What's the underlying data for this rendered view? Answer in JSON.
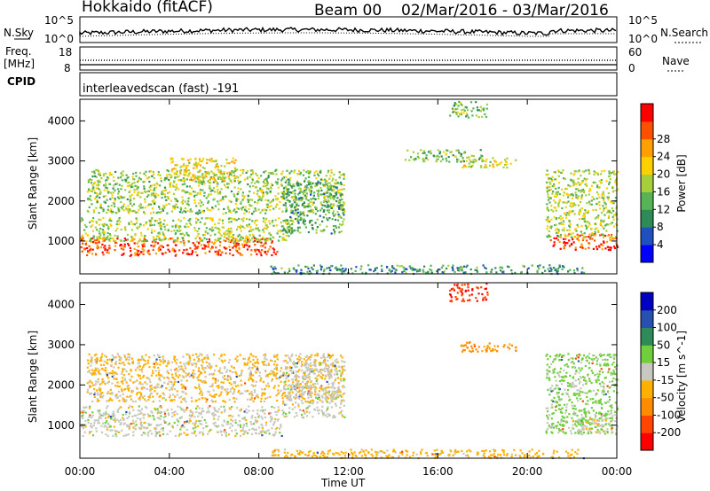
{
  "header": {
    "radar": "Hokkaido (fitACF)",
    "beam": "Beam 00",
    "dates": "02/Mar/2016 - 03/Mar/2016"
  },
  "left_labels": {
    "nsky": "N.Sky",
    "freq": "Freq.",
    "freq_unit": "[MHz]",
    "cpid": "CPID"
  },
  "right_labels": {
    "nsearch": "N.Search",
    "nave": "Nave"
  },
  "noise_panel": {
    "left_ticks": [
      "10^5",
      "10^0"
    ],
    "right_ticks": [
      "10^5",
      "10^0"
    ]
  },
  "freq_panel": {
    "left_ticks": [
      "18",
      "8"
    ],
    "right_ticks": [
      "60",
      "0"
    ]
  },
  "cpid_text": "interleavedscan (fast) -191",
  "x_axis": {
    "ticks": [
      "00:00",
      "04:00",
      "08:00",
      "12:00",
      "16:00",
      "20:00",
      "00:00"
    ],
    "title": "Time UT"
  },
  "chart_data": [
    {
      "type": "heatmap",
      "ylabel": "Slant Range [km]",
      "xlabel": "Time UT",
      "x_ticks_hours": [
        0,
        4,
        8,
        12,
        16,
        20,
        24
      ],
      "y_ticks": [
        1000,
        2000,
        3000,
        4000
      ],
      "ylim": [
        180,
        4540
      ],
      "xlim_hours": [
        0,
        24
      ],
      "colorbar": {
        "title": "Power [dB]",
        "ticks": [
          "4",
          "8",
          "12",
          "16",
          "20",
          "24",
          "28"
        ],
        "colors": [
          "#0000ff",
          "#2050c0",
          "#2e8b57",
          "#56b356",
          "#a7cf3c",
          "#ffd000",
          "#ffa000",
          "#ff5000",
          "#ff0000"
        ]
      },
      "regions": [
        {
          "t0": 0.0,
          "t1": 8.8,
          "r0": 650,
          "r1": 1100,
          "v": 26
        },
        {
          "t0": 0.0,
          "t1": 9.5,
          "r0": 1000,
          "r1": 1600,
          "v": 15
        },
        {
          "t0": 0.3,
          "t1": 11.8,
          "r0": 1700,
          "r1": 2800,
          "v": 14
        },
        {
          "t0": 9.0,
          "t1": 11.8,
          "r0": 1200,
          "r1": 2500,
          "v": 11
        },
        {
          "t0": 4.0,
          "t1": 7.0,
          "r0": 2500,
          "r1": 3100,
          "v": 18
        },
        {
          "t0": 16.5,
          "t1": 18.2,
          "r0": 4100,
          "r1": 4500,
          "v": 13
        },
        {
          "t0": 17.0,
          "t1": 19.5,
          "r0": 2850,
          "r1": 3100,
          "v": 17
        },
        {
          "t0": 14.5,
          "t1": 18.0,
          "r0": 3000,
          "r1": 3300,
          "v": 12
        },
        {
          "t0": 21.0,
          "t1": 24.0,
          "r0": 800,
          "r1": 1200,
          "v": 26
        },
        {
          "t0": 20.8,
          "t1": 24.0,
          "r0": 1100,
          "r1": 2800,
          "v": 15
        },
        {
          "t0": 8.5,
          "t1": 22.5,
          "r0": 200,
          "r1": 420,
          "v": 9
        }
      ]
    },
    {
      "type": "heatmap",
      "ylabel": "Slant Range [km]",
      "xlabel": "Time UT",
      "x_ticks_hours": [
        0,
        4,
        8,
        12,
        16,
        20,
        24
      ],
      "y_ticks": [
        1000,
        2000,
        3000,
        4000
      ],
      "ylim": [
        180,
        4540
      ],
      "xlim_hours": [
        0,
        24
      ],
      "colorbar": {
        "title": "Velocity [m s^-1]",
        "ticks": [
          "-200",
          "-100",
          "-50",
          "-15",
          "15",
          "50",
          "100",
          "200"
        ],
        "colors": [
          "#ff0000",
          "#ff4500",
          "#ff8c00",
          "#ffb000",
          "#c8c8c0",
          "#6fcf3a",
          "#2e8b57",
          "#2850b0",
          "#0000c0"
        ]
      },
      "regions": [
        {
          "t0": 0.0,
          "t1": 9.0,
          "r0": 750,
          "r1": 1500,
          "v": 0
        },
        {
          "t0": 0.3,
          "t1": 11.8,
          "r0": 1600,
          "r1": 2800,
          "v": -20
        },
        {
          "t0": 9.0,
          "t1": 11.8,
          "r0": 1200,
          "r1": 2600,
          "v": 0
        },
        {
          "t0": 16.5,
          "t1": 18.2,
          "r0": 4100,
          "r1": 4540,
          "v": -200
        },
        {
          "t0": 17.0,
          "t1": 19.5,
          "r0": 2850,
          "r1": 3100,
          "v": -60
        },
        {
          "t0": 20.8,
          "t1": 24.0,
          "r0": 800,
          "r1": 2800,
          "v": 25
        },
        {
          "t0": 22.0,
          "t1": 24.0,
          "r0": 800,
          "r1": 1300,
          "v": 0
        },
        {
          "t0": 8.5,
          "t1": 22.5,
          "r0": 200,
          "r1": 420,
          "v": -30
        }
      ]
    }
  ]
}
